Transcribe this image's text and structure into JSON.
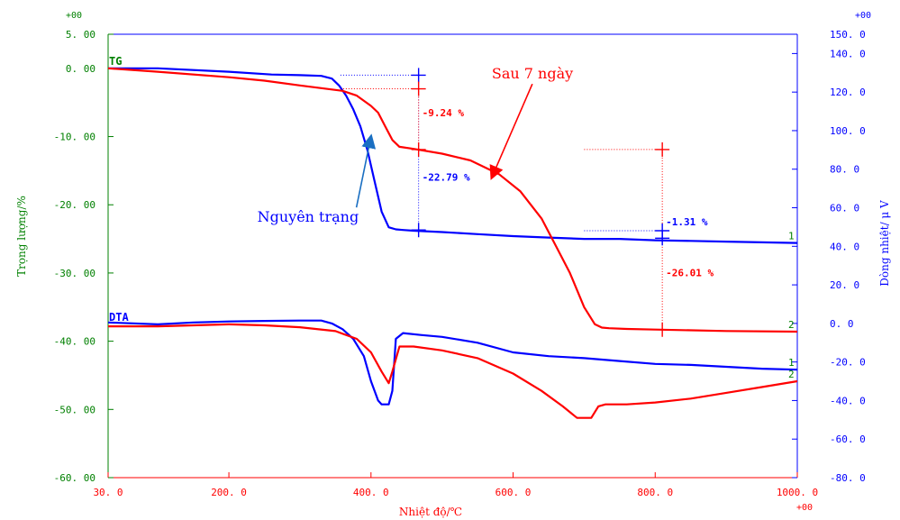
{
  "chart_data": {
    "type": "line",
    "title": "",
    "xlabel": "Nhiệt độ/℃",
    "ylabel_left": "Trọng lượng/%",
    "ylabel_right": "Dòng nhiệt/ μ V",
    "exp_x": "+00",
    "exp_left": "+00",
    "exp_right": "+00",
    "xlim": [
      30,
      1000
    ],
    "ylim_left": [
      -60,
      5
    ],
    "ylim_right": [
      -80,
      150
    ],
    "x_ticks": [
      30,
      200,
      400,
      600,
      800,
      1000
    ],
    "x_tick_labels": [
      "30. 0",
      "200. 0",
      "400. 0",
      "600. 0",
      "800. 0",
      "1000. 0"
    ],
    "left_ticks": [
      5,
      0,
      -10,
      -20,
      -30,
      -40,
      -50,
      -60
    ],
    "left_tick_labels": [
      "5. 00",
      "0. 00",
      "-10. 00",
      "-20. 00",
      "-30. 00",
      "-40. 00",
      "-50. 00",
      "-60. 00"
    ],
    "right_ticks": [
      150,
      140,
      120,
      100,
      80,
      60,
      40,
      20,
      0,
      -20,
      -40,
      -60,
      -80
    ],
    "right_tick_labels": [
      "150. 0",
      "140. 0",
      "120. 0",
      "100. 0",
      "80. 0",
      "60. 0",
      "40. 0",
      "20. 0",
      "0. 0",
      "-20. 0",
      "-40. 0",
      "-60. 0",
      "-80. 0"
    ],
    "curve_labels": {
      "tg": "TG",
      "dta": "DTA"
    },
    "series": [
      {
        "name": "Nguyên trạng",
        "axis": "left",
        "kind": "TG",
        "color": "#0000ff",
        "marker_label": "1",
        "x": [
          30,
          100,
          200,
          260,
          300,
          330,
          345,
          355,
          365,
          375,
          385,
          395,
          405,
          415,
          425,
          435,
          445,
          460,
          500,
          550,
          600,
          650,
          700,
          750,
          800,
          850,
          900,
          950,
          1000
        ],
        "y": [
          0.0,
          0.0,
          -0.5,
          -0.9,
          -1.0,
          -1.1,
          -1.5,
          -2.5,
          -4.0,
          -6.0,
          -8.5,
          -12.0,
          -16.5,
          -21.0,
          -23.3,
          -23.6,
          -23.7,
          -23.8,
          -24.0,
          -24.3,
          -24.6,
          -24.8,
          -25.0,
          -25.0,
          -25.2,
          -25.3,
          -25.4,
          -25.5,
          -25.6
        ]
      },
      {
        "name": "Sau 7 ngày",
        "axis": "left",
        "kind": "TG",
        "color": "#ff0000",
        "marker_label": "2",
        "x": [
          30,
          100,
          200,
          250,
          300,
          330,
          360,
          380,
          400,
          410,
          420,
          430,
          440,
          460,
          500,
          540,
          580,
          610,
          640,
          660,
          680,
          700,
          715,
          725,
          735,
          760,
          800,
          900,
          1000
        ],
        "y": [
          0.0,
          -0.5,
          -1.3,
          -1.8,
          -2.5,
          -2.9,
          -3.3,
          -4.0,
          -5.5,
          -6.5,
          -8.5,
          -10.5,
          -11.5,
          -11.8,
          -12.5,
          -13.5,
          -15.5,
          -18.0,
          -22.0,
          -26.0,
          -30.0,
          -35.0,
          -37.5,
          -38.0,
          -38.1,
          -38.2,
          -38.3,
          -38.5,
          -38.6
        ]
      },
      {
        "name": "Nguyên trạng",
        "axis": "right",
        "kind": "DTA",
        "color": "#0000ff",
        "marker_label": "1",
        "x": [
          30,
          100,
          150,
          200,
          250,
          300,
          330,
          345,
          360,
          375,
          390,
          400,
          410,
          415,
          425,
          430,
          435,
          445,
          470,
          500,
          550,
          600,
          650,
          700,
          750,
          800,
          850,
          900,
          950,
          1000
        ],
        "y": [
          0.5,
          -0.5,
          0.5,
          1.0,
          1.3,
          1.5,
          1.5,
          0.0,
          -3.0,
          -8.0,
          -17.0,
          -30.0,
          -40.0,
          -42.0,
          -42.0,
          -35.0,
          -8.0,
          -5.0,
          -6.0,
          -7.0,
          -10.0,
          -15.0,
          -17.0,
          -18.0,
          -19.5,
          -21.0,
          -21.5,
          -22.5,
          -23.5,
          -24.0
        ]
      },
      {
        "name": "Sau 7 ngày",
        "axis": "right",
        "kind": "DTA",
        "color": "#ff0000",
        "marker_label": "2",
        "x": [
          30,
          100,
          200,
          250,
          300,
          350,
          380,
          400,
          415,
          425,
          430,
          440,
          460,
          500,
          550,
          600,
          640,
          670,
          690,
          710,
          720,
          730,
          740,
          760,
          800,
          850,
          900,
          950,
          1000
        ],
        "y": [
          -1.5,
          -1.5,
          -0.5,
          -1.0,
          -2.0,
          -4.0,
          -8.0,
          -15.0,
          -25.0,
          -31.0,
          -25.0,
          -12.0,
          -12.0,
          -14.0,
          -18.0,
          -26.0,
          -35.0,
          -43.0,
          -49.0,
          -49.0,
          -43.0,
          -42.0,
          -42.0,
          -42.0,
          -41.0,
          -39.0,
          -36.0,
          -33.0,
          -30.0
        ]
      }
    ],
    "annotations": [
      {
        "text": "-9.24 %",
        "color": "#ff0000",
        "x": 467,
        "y": -7.0
      },
      {
        "text": "-22.79 %",
        "color": "#0000ff",
        "x": 467,
        "y": -16.5
      },
      {
        "text": "-1.31 %",
        "color": "#0000ff",
        "x": 810,
        "y": -23.0
      },
      {
        "text": "-26.01 %",
        "color": "#ff0000",
        "x": 810,
        "y": -30.5
      }
    ],
    "callouts": [
      {
        "text": "Nguyên trạng",
        "color": "#0000ff",
        "x": 240,
        "y": -22.5,
        "arrow_to": [
          400,
          -10.0
        ],
        "arrow_color": "#1a6fc2"
      },
      {
        "text": "Sau 7 ngày",
        "color": "#ff0000",
        "x": 570,
        "y": -1.5,
        "arrow_to": [
          570,
          -16.0
        ],
        "arrow_color": "#ff0000"
      }
    ],
    "step_guides": [
      {
        "color": "#0000ff",
        "x": 467,
        "y1": -1.0,
        "y2": -23.7
      },
      {
        "color": "#ff0000",
        "x": 467,
        "y1": -3.0,
        "y2": -11.9
      },
      {
        "color": "#0000ff",
        "x": 810,
        "y1": -23.8,
        "y2": -24.9
      },
      {
        "color": "#ff0000",
        "x": 810,
        "y1": -11.9,
        "y2": -38.3
      }
    ],
    "colors": {
      "left_axis": "#008000",
      "right_axis": "#0000ff",
      "bottom_axis": "#ff0000",
      "grid_frame": "#0000ff"
    }
  }
}
